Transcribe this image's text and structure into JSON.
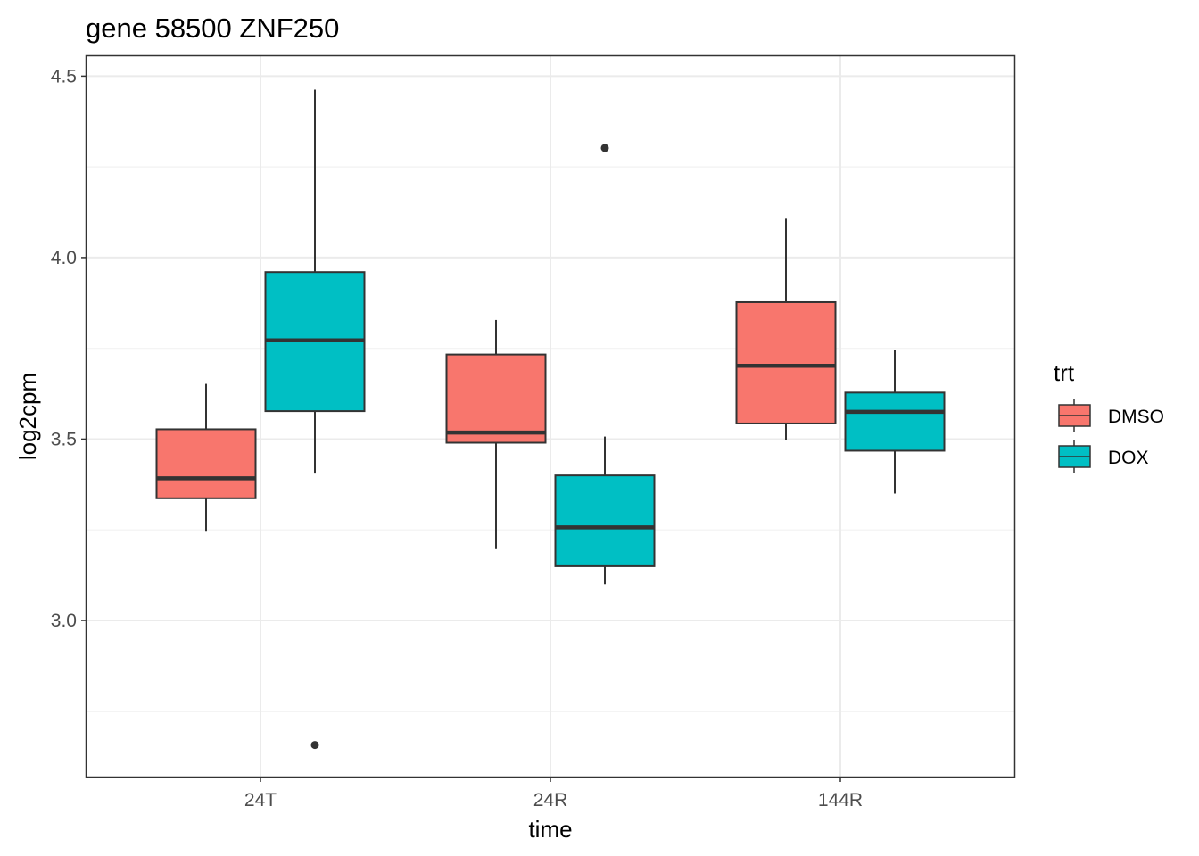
{
  "chart_data": {
    "type": "box",
    "title": "gene 58500 ZNF250",
    "xlabel": "time",
    "ylabel": "log2cpm",
    "categories": [
      "24T",
      "24R",
      "144R"
    ],
    "ylim": [
      2.57,
      4.555
    ],
    "yticks": [
      3.0,
      3.5,
      4.0,
      4.5
    ],
    "ytick_labels": [
      "3.0",
      "3.5",
      "4.0",
      "4.5"
    ],
    "y_minor_ticks": [
      2.75,
      3.25,
      3.75,
      4.25
    ],
    "grid": true,
    "legend": {
      "title": "trt",
      "position": "right",
      "entries": [
        {
          "name": "DMSO",
          "color": "#F8766D"
        },
        {
          "name": "DOX",
          "color": "#00BFC4"
        }
      ]
    },
    "series": [
      {
        "name": "DMSO",
        "color": "#F8766D",
        "boxes": [
          {
            "category": "24T",
            "whisker_low": 3.245,
            "q1": 3.337,
            "median": 3.392,
            "q3": 3.527,
            "whisker_high": 3.652,
            "outliers": []
          },
          {
            "category": "24R",
            "whisker_low": 3.197,
            "q1": 3.49,
            "median": 3.518,
            "q3": 3.733,
            "whisker_high": 3.828,
            "outliers": []
          },
          {
            "category": "144R",
            "whisker_low": 3.497,
            "q1": 3.543,
            "median": 3.702,
            "q3": 3.877,
            "whisker_high": 4.107,
            "outliers": []
          }
        ]
      },
      {
        "name": "DOX",
        "color": "#00BFC4",
        "boxes": [
          {
            "category": "24T",
            "whisker_low": 3.405,
            "q1": 3.577,
            "median": 3.772,
            "q3": 3.96,
            "whisker_high": 4.463,
            "outliers": [
              2.657
            ]
          },
          {
            "category": "24R",
            "whisker_low": 3.1,
            "q1": 3.15,
            "median": 3.257,
            "q3": 3.4,
            "whisker_high": 3.507,
            "outliers": [
              4.302
            ]
          },
          {
            "category": "144R",
            "whisker_low": 3.35,
            "q1": 3.468,
            "median": 3.575,
            "q3": 3.628,
            "whisker_high": 3.745,
            "outliers": []
          }
        ]
      }
    ]
  }
}
